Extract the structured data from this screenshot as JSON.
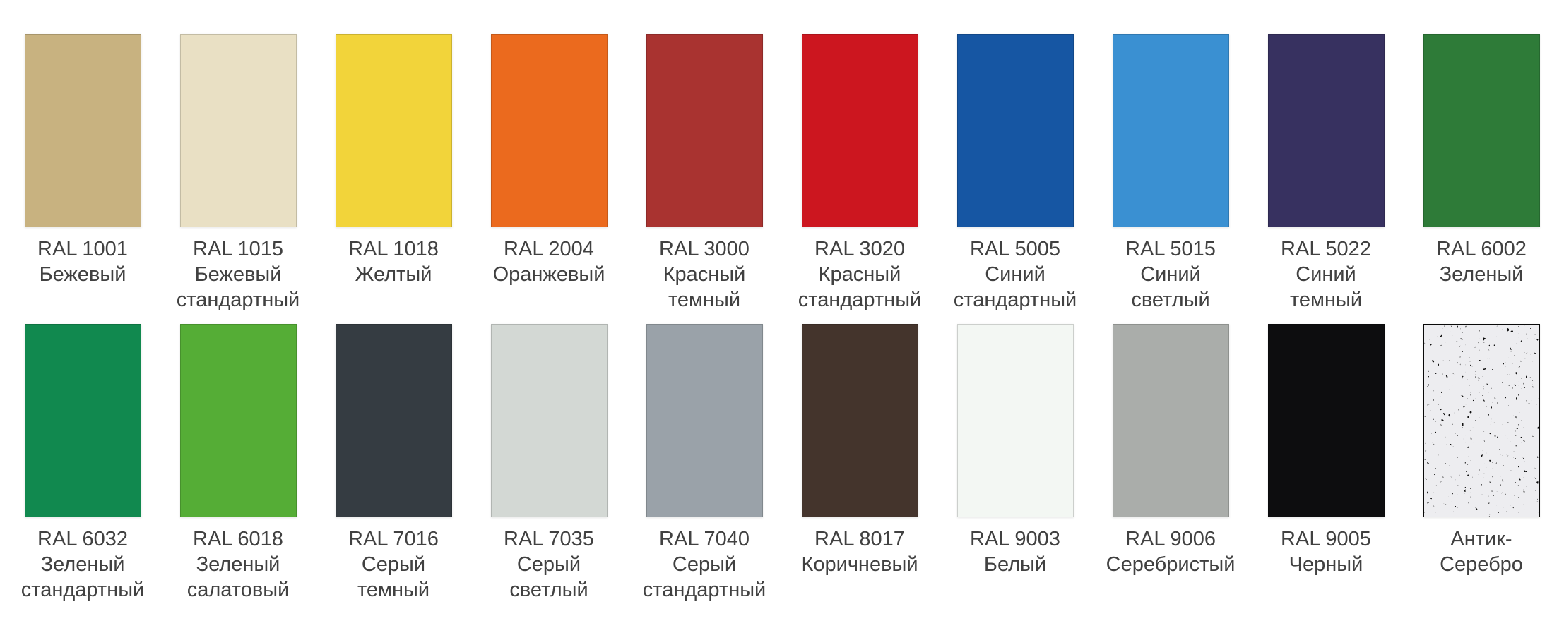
{
  "page": {
    "background": "#ffffff",
    "label_text_color": "#414141"
  },
  "palette": {
    "rows": 2,
    "columns": 10,
    "swatches": [
      {
        "code": "RAL 1001",
        "name_lines": [
          "Бежевый"
        ],
        "hex": "#C8B280",
        "row": 1
      },
      {
        "code": "RAL 1015",
        "name_lines": [
          "Бежевый",
          "стандартный"
        ],
        "hex": "#E9E0C4",
        "row": 1
      },
      {
        "code": "RAL 1018",
        "name_lines": [
          "Желтый"
        ],
        "hex": "#F2D43A",
        "row": 1
      },
      {
        "code": "RAL 2004",
        "name_lines": [
          "Оранжевый"
        ],
        "hex": "#EB6A1E",
        "row": 1
      },
      {
        "code": "RAL 3000",
        "name_lines": [
          "Красный",
          "темный"
        ],
        "hex": "#A93330",
        "row": 1
      },
      {
        "code": "RAL 3020",
        "name_lines": [
          "Красный",
          "стандартный"
        ],
        "hex": "#CC161F",
        "row": 1
      },
      {
        "code": "RAL 5005",
        "name_lines": [
          "Синий",
          "стандартный"
        ],
        "hex": "#1656A3",
        "row": 1
      },
      {
        "code": "RAL 5015",
        "name_lines": [
          "Синий",
          "светлый"
        ],
        "hex": "#3A90D2",
        "row": 1
      },
      {
        "code": "RAL 5022",
        "name_lines": [
          "Синий",
          "темный"
        ],
        "hex": "#373160",
        "row": 1
      },
      {
        "code": "RAL 6002",
        "name_lines": [
          "Зеленый"
        ],
        "hex": "#2E7B38",
        "row": 1
      },
      {
        "code": "RAL 6032",
        "name_lines": [
          "Зеленый",
          "стандартный"
        ],
        "hex": "#11894F",
        "row": 2
      },
      {
        "code": "RAL 6018",
        "name_lines": [
          "Зеленый",
          "салатовый"
        ],
        "hex": "#55AD36",
        "row": 2
      },
      {
        "code": "RAL 7016",
        "name_lines": [
          "Серый",
          "темный"
        ],
        "hex": "#353C42",
        "row": 2
      },
      {
        "code": "RAL 7035",
        "name_lines": [
          "Серый",
          "светлый"
        ],
        "hex": "#D3D8D4",
        "row": 2
      },
      {
        "code": "RAL 7040",
        "name_lines": [
          "Серый",
          "стандартный"
        ],
        "hex": "#9AA2A9",
        "row": 2
      },
      {
        "code": "RAL 8017",
        "name_lines": [
          "Коричневый"
        ],
        "hex": "#44342C",
        "row": 2
      },
      {
        "code": "RAL 9003",
        "name_lines": [
          "Белый"
        ],
        "hex": "#F3F7F3",
        "row": 2
      },
      {
        "code": "RAL 9006",
        "name_lines": [
          "Серебристый"
        ],
        "hex": "#AAADAA",
        "row": 2
      },
      {
        "code": "RAL 9005",
        "name_lines": [
          "Черный"
        ],
        "hex": "#0D0D0F",
        "row": 2
      },
      {
        "code": "",
        "name_lines": [
          "Антик-Серебро"
        ],
        "hex": "#111111",
        "row": 2,
        "texture": "antik-silver",
        "texture_speckle_color": "#D9D9DE"
      }
    ]
  }
}
